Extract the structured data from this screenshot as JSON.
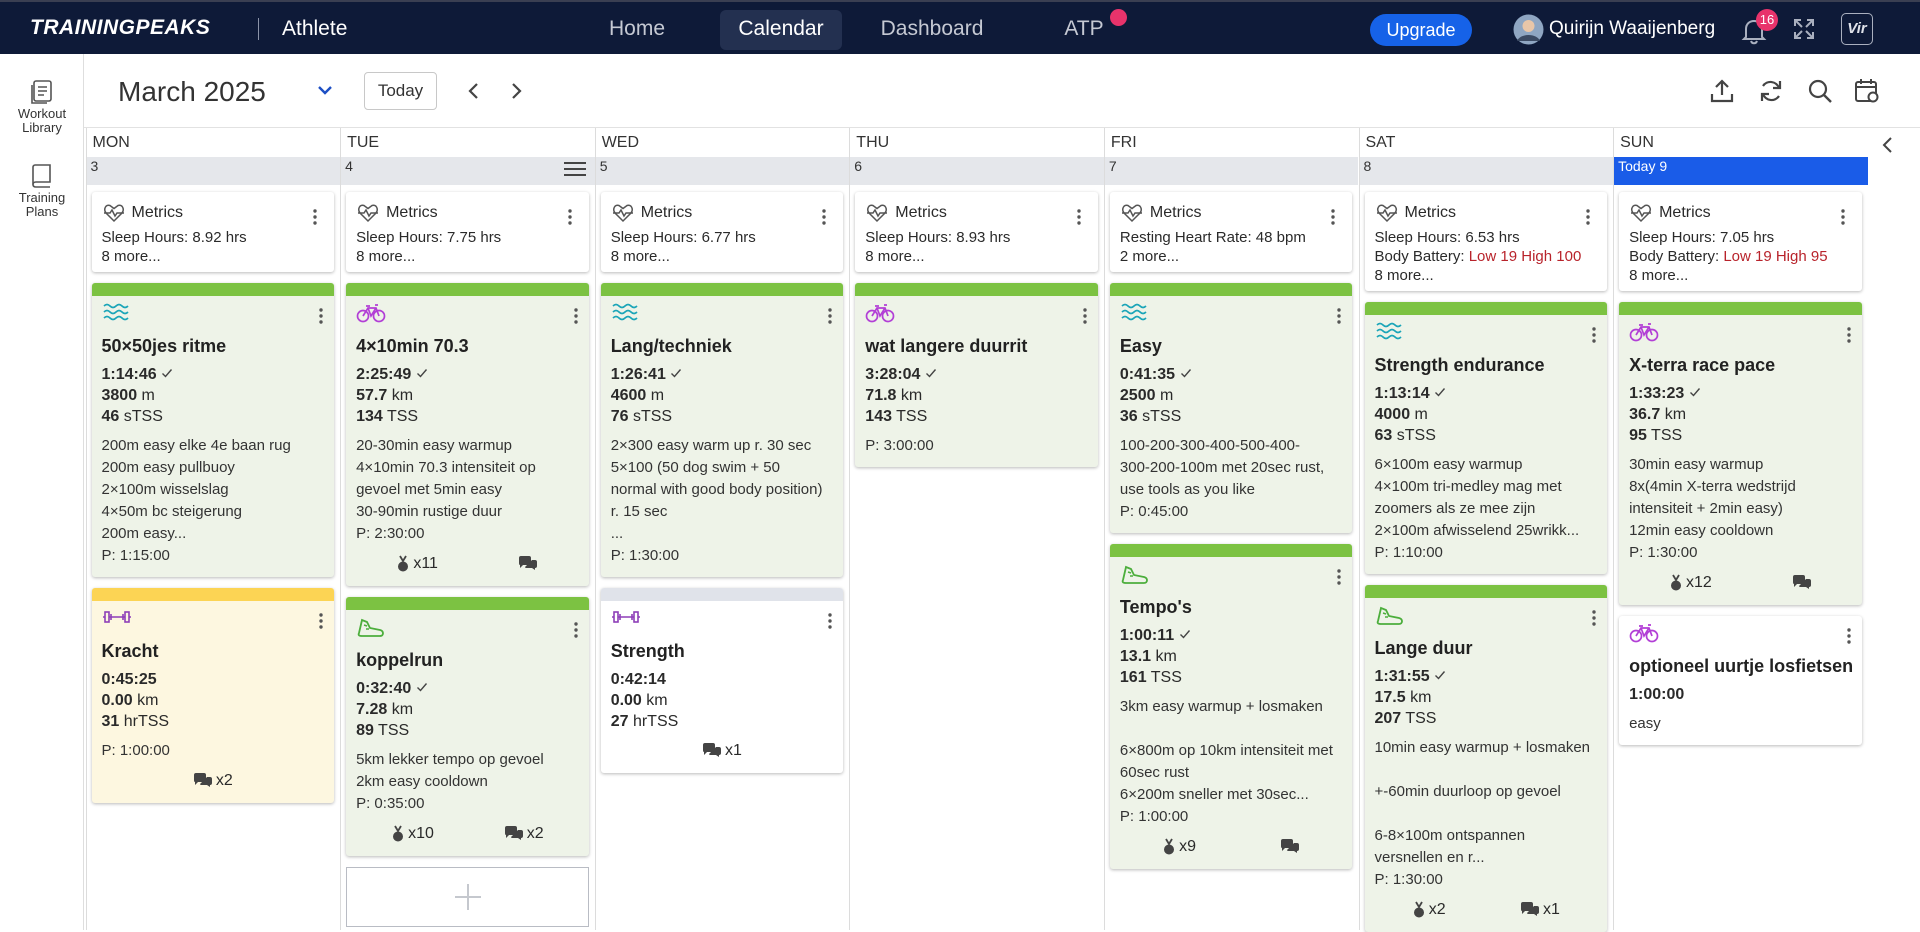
{
  "header": {
    "logo": "TRAININGPEAKS",
    "product": "Athlete",
    "nav": [
      "Home",
      "Calendar",
      "Dashboard",
      "ATP"
    ],
    "upgrade": "Upgrade",
    "user": "Quirijn Waaijenberg",
    "notifications": "16",
    "badge": "Vir"
  },
  "sidebar": [
    "Workout Library",
    "Training Plans"
  ],
  "toolbar": {
    "month": "March 2025",
    "today": "Today"
  },
  "calendar": {
    "days": [
      {
        "name": "MON",
        "date": "3",
        "cards": [
          {
            "sport": "metrics",
            "title": "Metrics",
            "lines": [
              {
                "label": "Sleep Hours:",
                "value": "8.92 hrs"
              }
            ],
            "more": "8 more..."
          },
          {
            "sport": "swim",
            "bar": "#7cc242",
            "background": "#eef3e8",
            "title": "50×50jes ritme",
            "duration": "1:14:46",
            "completed": true,
            "stats": [
              {
                "value": "3800",
                "unit": "m"
              },
              {
                "value": "46",
                "unit": "sTSS"
              }
            ],
            "description": [
              [
                "200m easy elke 4e baan rug",
                "200m easy pullbuoy",
                "2×100m wisselslag",
                "4×50m bc steigerung",
                "200m easy..."
              ]
            ],
            "planned": "P: 1:15:00"
          },
          {
            "sport": "strength",
            "bar": "#fcd454",
            "background": "#fdf7e0",
            "title": "Kracht",
            "duration": "0:45:25",
            "completed": false,
            "stats": [
              {
                "value": "0.00",
                "unit": "km"
              },
              {
                "value": "31",
                "unit": "hrTSS"
              }
            ],
            "planned": "P: 1:00:00",
            "footer": [
              {
                "icon": "comment",
                "count": "x2"
              }
            ]
          }
        ]
      },
      {
        "name": "TUE",
        "date": "4",
        "cards": [
          {
            "sport": "metrics",
            "title": "Metrics",
            "lines": [
              {
                "label": "Sleep Hours:",
                "value": "7.75 hrs"
              }
            ],
            "more": "8 more..."
          },
          {
            "sport": "bike",
            "bar": "#7cc242",
            "background": "#eef3e8",
            "title": "4×10min 70.3",
            "duration": "2:25:49",
            "completed": true,
            "stats": [
              {
                "value": "57.7",
                "unit": "km"
              },
              {
                "value": "134",
                "unit": "TSS"
              }
            ],
            "description": [
              [
                "20-30min easy warmup",
                "4×10min 70.3 intensiteit op",
                "gevoel met 5min easy",
                "30-90min rustige duur"
              ]
            ],
            "planned": "P: 2:30:00",
            "footer": [
              {
                "icon": "kudos",
                "count": "x11"
              },
              {
                "icon": "comment"
              }
            ]
          },
          {
            "sport": "run",
            "bar": "#7cc242",
            "background": "#eef3e8",
            "title": "koppelrun",
            "duration": "0:32:40",
            "completed": true,
            "stats": [
              {
                "value": "7.28",
                "unit": "km"
              },
              {
                "value": "89",
                "unit": "TSS"
              }
            ],
            "description": [
              [
                "5km lekker tempo op gevoel",
                "2km easy cooldown"
              ]
            ],
            "planned": "P: 0:35:00",
            "footer": [
              {
                "icon": "kudos",
                "count": "x10"
              },
              {
                "icon": "comment",
                "count": "x2"
              }
            ]
          }
        ]
      },
      {
        "name": "WED",
        "date": "5",
        "cards": [
          {
            "sport": "metrics",
            "title": "Metrics",
            "lines": [
              {
                "label": "Sleep Hours:",
                "value": "6.77 hrs"
              }
            ],
            "more": "8 more..."
          },
          {
            "sport": "swim",
            "bar": "#7cc242",
            "background": "#eef3e8",
            "title": "Lang/techniek",
            "duration": "1:26:41",
            "completed": true,
            "stats": [
              {
                "value": "4600",
                "unit": "m"
              },
              {
                "value": "76",
                "unit": "sTSS"
              }
            ],
            "description": [
              [
                "2×300 easy warm up r. 30 sec",
                "5×100 (50 dog swim + 50",
                "normal with good body position)",
                "r. 15 sec",
                "..."
              ]
            ],
            "planned": "P: 1:30:00"
          },
          {
            "sport": "strength",
            "bar": "#e0e3ea",
            "background": "#ffffff",
            "title": "Strength",
            "duration": "0:42:14",
            "completed": false,
            "stats": [
              {
                "value": "0.00",
                "unit": "km"
              },
              {
                "value": "27",
                "unit": "hrTSS"
              }
            ],
            "footer": [
              {
                "icon": "comment",
                "count": "x1"
              }
            ]
          }
        ]
      },
      {
        "name": "THU",
        "date": "6",
        "cards": [
          {
            "sport": "metrics",
            "title": "Metrics",
            "lines": [
              {
                "label": "Sleep Hours:",
                "value": "8.93 hrs"
              }
            ],
            "more": "8 more..."
          },
          {
            "sport": "bike",
            "bar": "#7cc242",
            "background": "#eef3e8",
            "title": "wat langere duurrit",
            "duration": "3:28:04",
            "completed": true,
            "stats": [
              {
                "value": "71.8",
                "unit": "km"
              },
              {
                "value": "143",
                "unit": "TSS"
              }
            ],
            "planned": "P: 3:00:00"
          }
        ]
      },
      {
        "name": "FRI",
        "date": "7",
        "cards": [
          {
            "sport": "metrics",
            "title": "Metrics",
            "lines": [
              {
                "label": "Resting Heart Rate:",
                "value": "48 bpm"
              }
            ],
            "more": "2 more..."
          },
          {
            "sport": "swim",
            "bar": "#7cc242",
            "background": "#eef3e8",
            "title": "Easy",
            "duration": "0:41:35",
            "completed": true,
            "stats": [
              {
                "value": "2500",
                "unit": "m"
              },
              {
                "value": "36",
                "unit": "sTSS"
              }
            ],
            "description": [
              [
                "100-200-300-400-500-400-",
                "300-200-100m met 20sec rust,",
                "use tools as you like"
              ]
            ],
            "planned": "P: 0:45:00"
          },
          {
            "sport": "run",
            "bar": "#7cc242",
            "background": "#eef3e8",
            "title": "Tempo's",
            "duration": "1:00:11",
            "completed": true,
            "stats": [
              {
                "value": "13.1",
                "unit": "km"
              },
              {
                "value": "161",
                "unit": "TSS"
              }
            ],
            "description": [
              [
                "3km easy warmup + losmaken"
              ],
              [
                "6×800m op 10km intensiteit met",
                "60sec rust",
                "6×200m sneller met 30sec..."
              ]
            ],
            "planned": "P: 1:00:00",
            "footer": [
              {
                "icon": "kudos",
                "count": "x9"
              },
              {
                "icon": "comment"
              }
            ]
          }
        ]
      },
      {
        "name": "SAT",
        "date": "8",
        "cards": [
          {
            "sport": "metrics",
            "title": "Metrics",
            "lines": [
              {
                "label": "Sleep Hours:",
                "value": "6.53 hrs"
              },
              {
                "label": "Body Battery:",
                "value": "Low 19 High 100",
                "color": "#b8232b"
              }
            ],
            "more": "8 more..."
          },
          {
            "sport": "swim",
            "bar": "#7cc242",
            "background": "#eef3e8",
            "title": "Strength endurance",
            "duration": "1:13:14",
            "completed": true,
            "stats": [
              {
                "value": "4000",
                "unit": "m"
              },
              {
                "value": "63",
                "unit": "sTSS"
              }
            ],
            "description": [
              [
                "6×100m easy warmup",
                "4×100m tri-medley mag met",
                "zoomers als ze mee zijn",
                "2×100m afwisselend 25wrikk..."
              ]
            ],
            "planned": "P: 1:10:00"
          },
          {
            "sport": "run",
            "bar": "#7cc242",
            "background": "#eef3e8",
            "title": "Lange duur",
            "duration": "1:31:55",
            "completed": true,
            "stats": [
              {
                "value": "17.5",
                "unit": "km"
              },
              {
                "value": "207",
                "unit": "TSS"
              }
            ],
            "description": [
              [
                "10min easy warmup + losmaken"
              ],
              [
                "+-60min duurloop op gevoel"
              ],
              [
                "6-8×100m ontspannen",
                "versnellen en r..."
              ]
            ],
            "planned": "P: 1:30:00",
            "footer": [
              {
                "icon": "kudos",
                "count": "x2"
              },
              {
                "icon": "comment",
                "count": "x1"
              }
            ]
          }
        ]
      },
      {
        "name": "SUN",
        "date": "Today 9",
        "today": true,
        "cards": [
          {
            "sport": "metrics",
            "title": "Metrics",
            "lines": [
              {
                "label": "Sleep Hours:",
                "value": "7.05 hrs"
              },
              {
                "label": "Body Battery:",
                "value": "Low 19 High 95",
                "color": "#b8232b"
              }
            ],
            "more": "8 more..."
          },
          {
            "sport": "bike",
            "bar": "#7cc242",
            "background": "#eef3e8",
            "title": "X-terra race pace",
            "duration": "1:33:23",
            "completed": true,
            "stats": [
              {
                "value": "36.7",
                "unit": "km"
              },
              {
                "value": "95",
                "unit": "TSS"
              }
            ],
            "description": [
              [
                "30min easy warmup",
                "8x(4min X-terra wedstrijd",
                "intensiteit + 2min easy)",
                "12min easy cooldown"
              ]
            ],
            "planned": "P: 1:30:00",
            "footer": [
              {
                "icon": "kudos",
                "count": "x12"
              },
              {
                "icon": "comment"
              }
            ]
          },
          {
            "sport": "bike",
            "background": "#ffffff",
            "title": "optioneel uurtje losfietsen",
            "duration": "1:00:00",
            "completed": false,
            "description": [
              [
                "easy"
              ]
            ]
          }
        ]
      }
    ]
  }
}
